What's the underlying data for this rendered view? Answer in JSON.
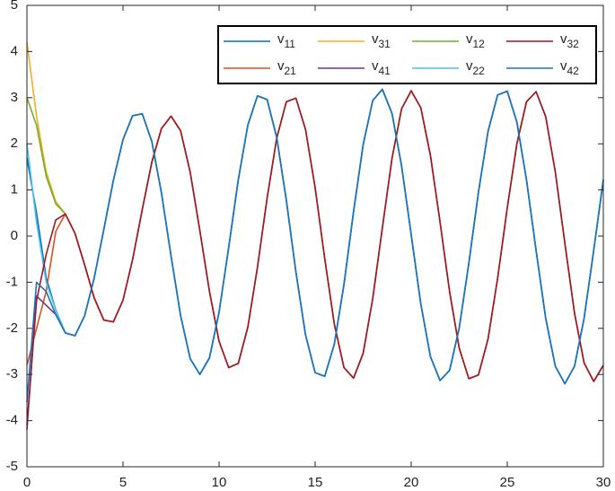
{
  "chart_data": {
    "type": "line",
    "x": [
      0,
      0.5,
      1,
      1.5,
      2,
      2.5,
      3,
      3.5,
      4,
      4.5,
      5,
      5.5,
      6,
      6.5,
      7,
      7.5,
      8,
      8.5,
      9,
      9.5,
      10,
      10.5,
      11,
      11.5,
      12,
      12.5,
      13,
      13.5,
      14,
      14.5,
      15,
      15.5,
      16,
      16.5,
      17,
      17.5,
      18,
      18.5,
      19,
      19.5,
      20,
      20.5,
      21,
      21.5,
      22,
      22.5,
      23,
      23.5,
      24,
      24.5,
      25,
      25.5,
      26,
      26.5,
      27,
      27.5,
      28,
      28.5,
      29,
      29.5,
      30
    ],
    "xlim": [
      0,
      30
    ],
    "xticks": [
      0,
      5,
      10,
      15,
      20,
      25,
      30
    ],
    "ylim": [
      -5,
      5
    ],
    "yticks": [
      -5,
      -4,
      -3,
      -2,
      -1,
      0,
      1,
      2,
      3,
      4,
      5
    ],
    "series": [
      {
        "name": "v11",
        "color": "#0072bd",
        "values": [
          1.7,
          0.5,
          -0.9,
          -1.6,
          -2.1,
          -2.16,
          -1.73,
          -0.91,
          0.14,
          1.21,
          2.09,
          2.61,
          2.65,
          2.05,
          0.94,
          -0.43,
          -1.73,
          -2.66,
          -3.0,
          -2.64,
          -1.65,
          -0.25,
          1.22,
          2.41,
          3.04,
          2.96,
          2.14,
          0.78,
          -0.78,
          -2.14,
          -2.96,
          -3.04,
          -2.34,
          -1.05,
          0.53,
          1.98,
          2.94,
          3.18,
          2.66,
          1.52,
          0.03,
          -1.47,
          -2.61,
          -3.13,
          -2.91,
          -1.99,
          -0.59,
          0.95,
          2.27,
          3.06,
          3.14,
          2.47,
          1.22,
          -0.31,
          -1.78,
          -2.82,
          -3.2,
          -2.82,
          -1.78,
          -0.31,
          1.22
        ]
      },
      {
        "name": "v21",
        "color": "#d95319",
        "values": [
          -2.8,
          -2.0,
          -1.2,
          0.1,
          0.48,
          0.06,
          -0.62,
          -1.34,
          -1.82,
          -1.86,
          -1.39,
          -0.51,
          0.57,
          1.6,
          2.33,
          2.6,
          2.28,
          1.38,
          0.12,
          -1.2,
          -2.28,
          -2.85,
          -2.76,
          -1.97,
          -0.67,
          0.82,
          2.12,
          2.91,
          2.99,
          2.31,
          1.05,
          -0.49,
          -1.91,
          -2.85,
          -3.08,
          -2.54,
          -1.35,
          0.18,
          1.68,
          2.76,
          3.15,
          2.78,
          1.75,
          0.31,
          -1.21,
          -2.43,
          -3.09,
          -3.01,
          -2.23,
          -0.91,
          0.61,
          2.0,
          2.91,
          3.13,
          2.59,
          1.39,
          -0.16,
          -1.67,
          -2.75,
          -3.15,
          -2.8
        ]
      },
      {
        "name": "v31",
        "color": "#edb120",
        "values": [
          4.2,
          2.6,
          1.4,
          0.75,
          0.48,
          0.06,
          -0.62,
          -1.34,
          -1.82,
          -1.86,
          -1.39,
          -0.51,
          0.57,
          1.6,
          2.33,
          2.6,
          2.28,
          1.38,
          0.12,
          -1.2,
          -2.28,
          -2.85,
          -2.76,
          -1.97,
          -0.67,
          0.82,
          2.12,
          2.91,
          2.99,
          2.31,
          1.05,
          -0.49,
          -1.91,
          -2.85,
          -3.08,
          -2.54,
          -1.35,
          0.18,
          1.68,
          2.76,
          3.15,
          2.78,
          1.75,
          0.31,
          -1.21,
          -2.43,
          -3.09,
          -3.01,
          -2.23,
          -0.91,
          0.61,
          2.0,
          2.91,
          3.13,
          2.59,
          1.39,
          -0.16,
          -1.67,
          -2.75,
          -3.15,
          -2.8
        ]
      },
      {
        "name": "v41",
        "color": "#7e2f8e",
        "values": [
          -4.2,
          -1.3,
          -1.5,
          -1.7,
          -2.1,
          -2.16,
          -1.73,
          -0.91,
          0.14,
          1.21,
          2.09,
          2.61,
          2.65,
          2.05,
          0.94,
          -0.43,
          -1.73,
          -2.66,
          -3.0,
          -2.64,
          -1.65,
          -0.25,
          1.22,
          2.41,
          3.04,
          2.96,
          2.14,
          0.78,
          -0.78,
          -2.14,
          -2.96,
          -3.04,
          -2.34,
          -1.05,
          0.53,
          1.98,
          2.94,
          3.18,
          2.66,
          1.52,
          0.03,
          -1.47,
          -2.61,
          -3.13,
          -2.91,
          -1.99,
          -0.59,
          0.95,
          2.27,
          3.06,
          3.14,
          2.47,
          1.22,
          -0.31,
          -1.78,
          -2.82,
          -3.2,
          -2.82,
          -1.78,
          -0.31,
          1.22
        ]
      },
      {
        "name": "v12",
        "color": "#77ac30",
        "values": [
          3.0,
          2.4,
          1.3,
          0.7,
          0.48,
          0.06,
          -0.62,
          -1.34,
          -1.82,
          -1.86,
          -1.39,
          -0.51,
          0.57,
          1.6,
          2.33,
          2.6,
          2.28,
          1.38,
          0.12,
          -1.2,
          -2.28,
          -2.85,
          -2.76,
          -1.97,
          -0.67,
          0.82,
          2.12,
          2.91,
          2.99,
          2.31,
          1.05,
          -0.49,
          -1.91,
          -2.85,
          -3.08,
          -2.54,
          -1.35,
          0.18,
          1.68,
          2.76,
          3.15,
          2.78,
          1.75,
          0.31,
          -1.21,
          -2.43,
          -3.09,
          -3.01,
          -2.23,
          -0.91,
          0.61,
          2.0,
          2.91,
          3.13,
          2.59,
          1.39,
          -0.16,
          -1.67,
          -2.75,
          -3.15,
          -2.8
        ]
      },
      {
        "name": "v22",
        "color": "#4dbeee",
        "values": [
          2.0,
          0.3,
          -1.0,
          -1.6,
          -2.1,
          -2.16,
          -1.73,
          -0.91,
          0.14,
          1.21,
          2.09,
          2.61,
          2.65,
          2.05,
          0.94,
          -0.43,
          -1.73,
          -2.66,
          -3.0,
          -2.64,
          -1.65,
          -0.25,
          1.22,
          2.41,
          3.04,
          2.96,
          2.14,
          0.78,
          -0.78,
          -2.14,
          -2.96,
          -3.04,
          -2.34,
          -1.05,
          0.53,
          1.98,
          2.94,
          3.18,
          2.66,
          1.52,
          0.03,
          -1.47,
          -2.61,
          -3.13,
          -2.91,
          -1.99,
          -0.59,
          0.95,
          2.27,
          3.06,
          3.14,
          2.47,
          1.22,
          -0.31,
          -1.78,
          -2.82,
          -3.2,
          -2.82,
          -1.78,
          -0.31,
          1.22
        ]
      },
      {
        "name": "v32",
        "color": "#a2142f",
        "values": [
          -4.1,
          -1.4,
          -0.4,
          0.35,
          0.48,
          0.06,
          -0.62,
          -1.34,
          -1.82,
          -1.86,
          -1.39,
          -0.51,
          0.57,
          1.6,
          2.33,
          2.6,
          2.28,
          1.38,
          0.12,
          -1.2,
          -2.28,
          -2.85,
          -2.76,
          -1.97,
          -0.67,
          0.82,
          2.12,
          2.91,
          2.99,
          2.31,
          1.05,
          -0.49,
          -1.91,
          -2.85,
          -3.08,
          -2.54,
          -1.35,
          0.18,
          1.68,
          2.76,
          3.15,
          2.78,
          1.75,
          0.31,
          -1.21,
          -2.43,
          -3.09,
          -3.01,
          -2.23,
          -0.91,
          0.61,
          2.0,
          2.91,
          3.13,
          2.59,
          1.39,
          -0.16,
          -1.67,
          -2.75,
          -3.15,
          -2.8
        ]
      },
      {
        "name": "v42",
        "color": "#1a74b8",
        "values": [
          -3.6,
          -1.0,
          -1.2,
          -1.7,
          -2.1,
          -2.16,
          -1.73,
          -0.91,
          0.14,
          1.21,
          2.09,
          2.61,
          2.65,
          2.05,
          0.94,
          -0.43,
          -1.73,
          -2.66,
          -3.0,
          -2.64,
          -1.65,
          -0.25,
          1.22,
          2.41,
          3.04,
          2.96,
          2.14,
          0.78,
          -0.78,
          -2.14,
          -2.96,
          -3.04,
          -2.34,
          -1.05,
          0.53,
          1.98,
          2.94,
          3.18,
          2.66,
          1.52,
          0.03,
          -1.47,
          -2.61,
          -3.13,
          -2.91,
          -1.99,
          -0.59,
          0.95,
          2.27,
          3.06,
          3.14,
          2.47,
          1.22,
          -0.31,
          -1.78,
          -2.82,
          -3.2,
          -2.82,
          -1.78,
          -0.31,
          1.22
        ]
      }
    ],
    "legend": "top-right"
  }
}
